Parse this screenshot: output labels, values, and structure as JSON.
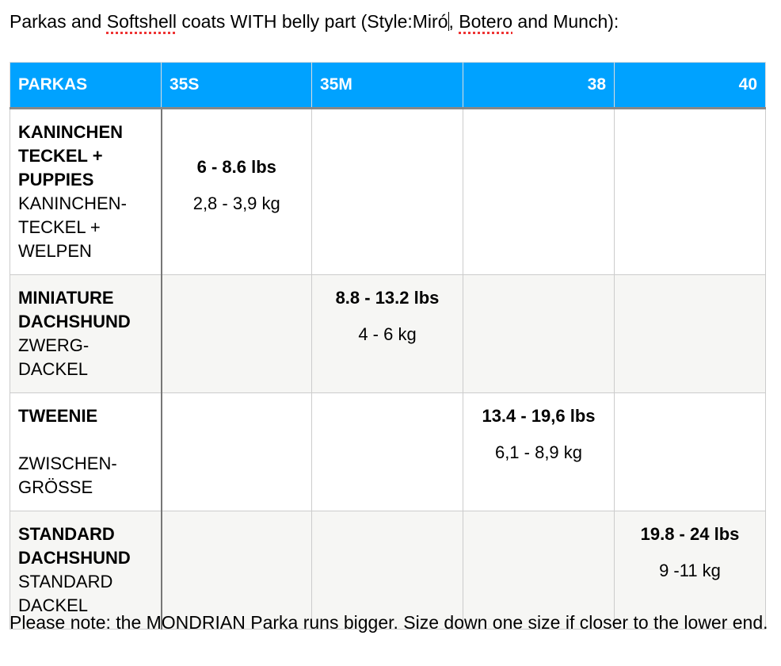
{
  "title": {
    "part1": "Parkas and ",
    "softshell": "Softshell",
    "part2": " coats WITH belly part (Style:Miró",
    "botero": "Botero",
    "part3": " and Munch):"
  },
  "table": {
    "headers": [
      "PARKAS",
      "35S",
      "35M",
      "38",
      "40"
    ],
    "rows": [
      {
        "name_en": "KANINCHEN TECKEL + PUPPIES",
        "name_de": "KANINCHEN-TECKEL + WELPEN",
        "lbs": "6 - 8.6 lbs",
        "kg": "2,8  - 3,9 kg",
        "col": 1
      },
      {
        "name_en": "MINIATURE DACHSHUND",
        "name_de": "ZWERG-DACKEL",
        "lbs": "8.8 - 13.2 lbs",
        "kg": "4  -  6 kg",
        "col": 2
      },
      {
        "name_en": "TWEENIE",
        "name_de": "ZWISCHEN-GRÖSSE",
        "lbs": "13.4 - 19,6 lbs",
        "kg": "6,1 - 8,9 kg",
        "col": 3
      },
      {
        "name_en": "STANDARD DACHSHUND",
        "name_de": "STANDARD DACKEL",
        "lbs": "19.8 - 24 lbs",
        "kg": "9 -11 kg",
        "col": 4
      }
    ]
  },
  "note": "Please note: the MONDRIAN Parka runs bigger. Size down one size if closer to the lower end.",
  "colors": {
    "header": "#00a2ff",
    "alt_row": "#f6f6f4"
  }
}
